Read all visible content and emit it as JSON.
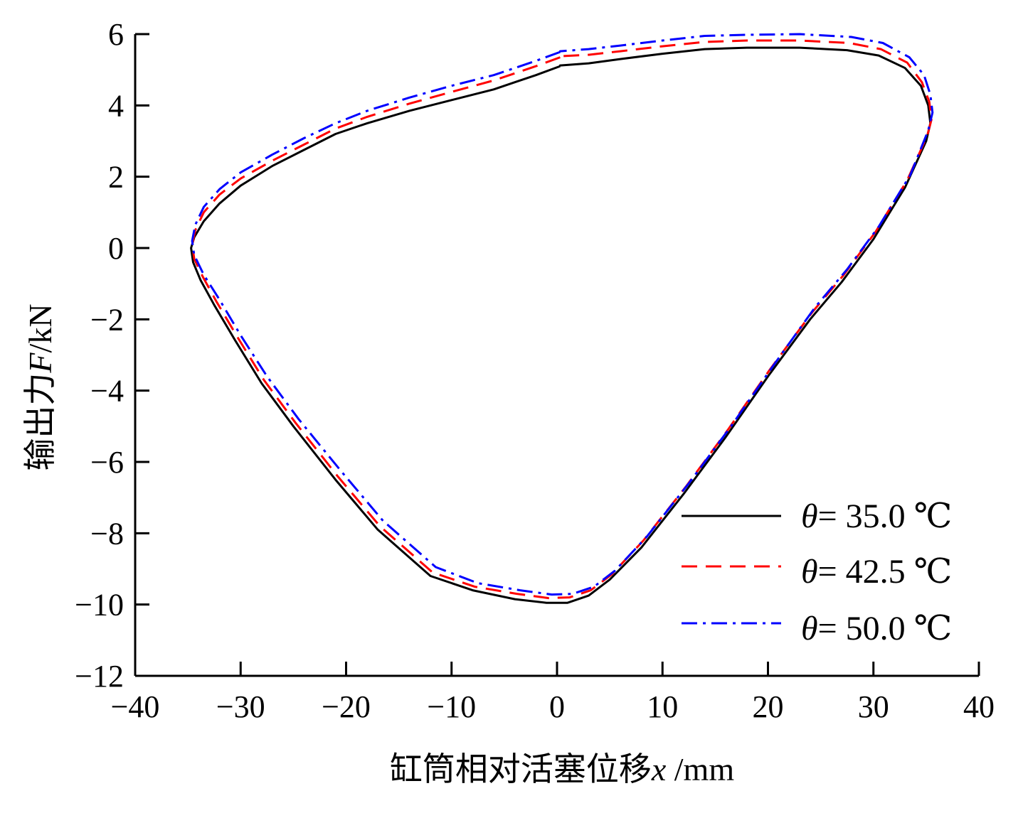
{
  "chart_data": {
    "type": "line",
    "title": "",
    "xlabel": {
      "prefix": "缸筒相对活塞位移",
      "var": "x",
      "unit": " /mm"
    },
    "ylabel": {
      "prefix": "输出力",
      "var": "F",
      "unit": "/kN"
    },
    "xlim": [
      -40,
      40
    ],
    "ylim": [
      -12,
      6
    ],
    "xticks": [
      -40,
      -30,
      -20,
      -10,
      0,
      10,
      20,
      30,
      40
    ],
    "xtick_labels": [
      "−40",
      "−30",
      "−20",
      "−10",
      "0",
      "10",
      "20",
      "30",
      "40"
    ],
    "yticks": [
      -12,
      -10,
      -8,
      -6,
      -4,
      -2,
      0,
      2,
      4,
      6
    ],
    "ytick_labels": [
      "−12",
      "−10",
      "−8",
      "−6",
      "−4",
      "−2",
      "0",
      "2",
      "4",
      "6"
    ],
    "grid": false,
    "legend_position": "bottom-right",
    "series": [
      {
        "name": "θ= 35.0 ℃",
        "legend_var": "θ",
        "legend_value": "= 35.0 ℃",
        "color": "#000000",
        "dash": "solid",
        "points": [
          [
            0.3,
            5.1
          ],
          [
            -2,
            4.85
          ],
          [
            -4,
            4.65
          ],
          [
            -6,
            4.45
          ],
          [
            -10,
            4.15
          ],
          [
            -14,
            3.85
          ],
          [
            -18,
            3.5
          ],
          [
            -21,
            3.2
          ],
          [
            -24,
            2.75
          ],
          [
            -27,
            2.3
          ],
          [
            -30,
            1.75
          ],
          [
            -32,
            1.25
          ],
          [
            -33.5,
            0.75
          ],
          [
            -34.4,
            0.3
          ],
          [
            -34.7,
            0.0
          ],
          [
            -34.5,
            -0.4
          ],
          [
            -33.8,
            -0.9
          ],
          [
            -32.5,
            -1.6
          ],
          [
            -30.5,
            -2.6
          ],
          [
            -28,
            -3.8
          ],
          [
            -25,
            -5.0
          ],
          [
            -21,
            -6.5
          ],
          [
            -17,
            -7.9
          ],
          [
            -12,
            -9.2
          ],
          [
            -8,
            -9.6
          ],
          [
            -4,
            -9.85
          ],
          [
            -1,
            -9.95
          ],
          [
            1,
            -9.95
          ],
          [
            3,
            -9.75
          ],
          [
            5,
            -9.3
          ],
          [
            8,
            -8.4
          ],
          [
            12,
            -6.9
          ],
          [
            16,
            -5.3
          ],
          [
            20,
            -3.6
          ],
          [
            24,
            -2.0
          ],
          [
            27,
            -0.95
          ],
          [
            30,
            0.25
          ],
          [
            33,
            1.7
          ],
          [
            35,
            3.0
          ],
          [
            35.4,
            3.5
          ],
          [
            35.2,
            4.0
          ],
          [
            34.5,
            4.55
          ],
          [
            33,
            5.05
          ],
          [
            30.5,
            5.4
          ],
          [
            27.5,
            5.55
          ],
          [
            23,
            5.62
          ],
          [
            18,
            5.62
          ],
          [
            14,
            5.58
          ],
          [
            10,
            5.45
          ],
          [
            6,
            5.3
          ],
          [
            3,
            5.18
          ],
          [
            0.3,
            5.12
          ],
          [
            0.3,
            5.1
          ]
        ]
      },
      {
        "name": "θ= 42.5 ℃",
        "legend_var": "θ",
        "legend_value": "= 42.5 ℃",
        "color": "#ff0000",
        "dash": "dashed",
        "points": [
          [
            0.3,
            5.35
          ],
          [
            -2,
            5.1
          ],
          [
            -4,
            4.9
          ],
          [
            -6,
            4.7
          ],
          [
            -10,
            4.38
          ],
          [
            -14,
            4.05
          ],
          [
            -18,
            3.68
          ],
          [
            -21,
            3.35
          ],
          [
            -24,
            2.9
          ],
          [
            -27,
            2.45
          ],
          [
            -30,
            1.95
          ],
          [
            -32,
            1.5
          ],
          [
            -33.5,
            1.0
          ],
          [
            -34.3,
            0.5
          ],
          [
            -34.6,
            0.1
          ],
          [
            -34.4,
            -0.3
          ],
          [
            -33.6,
            -0.8
          ],
          [
            -32.3,
            -1.5
          ],
          [
            -30.3,
            -2.5
          ],
          [
            -27.8,
            -3.7
          ],
          [
            -24.8,
            -4.9
          ],
          [
            -20.8,
            -6.4
          ],
          [
            -16.8,
            -7.8
          ],
          [
            -11.8,
            -9.1
          ],
          [
            -7.8,
            -9.5
          ],
          [
            -3.8,
            -9.7
          ],
          [
            -0.8,
            -9.82
          ],
          [
            1.2,
            -9.8
          ],
          [
            3.2,
            -9.6
          ],
          [
            5.2,
            -9.15
          ],
          [
            8.2,
            -8.2
          ],
          [
            12.2,
            -6.7
          ],
          [
            16.2,
            -5.1
          ],
          [
            20.2,
            -3.4
          ],
          [
            24.2,
            -1.8
          ],
          [
            27.2,
            -0.75
          ],
          [
            30.2,
            0.45
          ],
          [
            33.2,
            1.9
          ],
          [
            35.1,
            3.15
          ],
          [
            35.5,
            3.6
          ],
          [
            35.3,
            4.1
          ],
          [
            34.6,
            4.65
          ],
          [
            33.2,
            5.2
          ],
          [
            30.7,
            5.58
          ],
          [
            27.7,
            5.75
          ],
          [
            23,
            5.82
          ],
          [
            18,
            5.82
          ],
          [
            14,
            5.78
          ],
          [
            10,
            5.66
          ],
          [
            6,
            5.52
          ],
          [
            3,
            5.42
          ],
          [
            0.3,
            5.38
          ],
          [
            0.3,
            5.35
          ]
        ]
      },
      {
        "name": "θ= 50.0 ℃",
        "legend_var": "θ",
        "legend_value": "= 50.0 ℃",
        "color": "#0000ff",
        "dash": "dashdot",
        "points": [
          [
            0.3,
            5.5
          ],
          [
            -2,
            5.25
          ],
          [
            -4,
            5.05
          ],
          [
            -6,
            4.85
          ],
          [
            -10,
            4.55
          ],
          [
            -14,
            4.22
          ],
          [
            -18,
            3.85
          ],
          [
            -21,
            3.5
          ],
          [
            -24,
            3.08
          ],
          [
            -27,
            2.62
          ],
          [
            -30,
            2.12
          ],
          [
            -32,
            1.65
          ],
          [
            -33.5,
            1.15
          ],
          [
            -34.3,
            0.65
          ],
          [
            -34.6,
            0.2
          ],
          [
            -34.4,
            -0.2
          ],
          [
            -33.5,
            -0.75
          ],
          [
            -32,
            -1.45
          ],
          [
            -30,
            -2.45
          ],
          [
            -27.5,
            -3.6
          ],
          [
            -24.5,
            -4.8
          ],
          [
            -20.5,
            -6.25
          ],
          [
            -16.5,
            -7.65
          ],
          [
            -11.5,
            -8.95
          ],
          [
            -7.5,
            -9.4
          ],
          [
            -3.5,
            -9.6
          ],
          [
            -0.5,
            -9.72
          ],
          [
            1.5,
            -9.7
          ],
          [
            3.5,
            -9.5
          ],
          [
            5.5,
            -9.05
          ],
          [
            8.5,
            -8.1
          ],
          [
            12.5,
            -6.6
          ],
          [
            16.5,
            -5.0
          ],
          [
            20.5,
            -3.3
          ],
          [
            24.5,
            -1.65
          ],
          [
            27.5,
            -0.6
          ],
          [
            30.5,
            0.6
          ],
          [
            33.5,
            2.05
          ],
          [
            35.2,
            3.3
          ],
          [
            35.6,
            3.8
          ],
          [
            35.4,
            4.3
          ],
          [
            34.8,
            4.85
          ],
          [
            33.4,
            5.35
          ],
          [
            30.9,
            5.75
          ],
          [
            27.9,
            5.92
          ],
          [
            23,
            6.0
          ],
          [
            18,
            5.98
          ],
          [
            14,
            5.95
          ],
          [
            10,
            5.82
          ],
          [
            6,
            5.68
          ],
          [
            3,
            5.58
          ],
          [
            0.3,
            5.52
          ],
          [
            0.3,
            5.5
          ]
        ]
      }
    ]
  }
}
